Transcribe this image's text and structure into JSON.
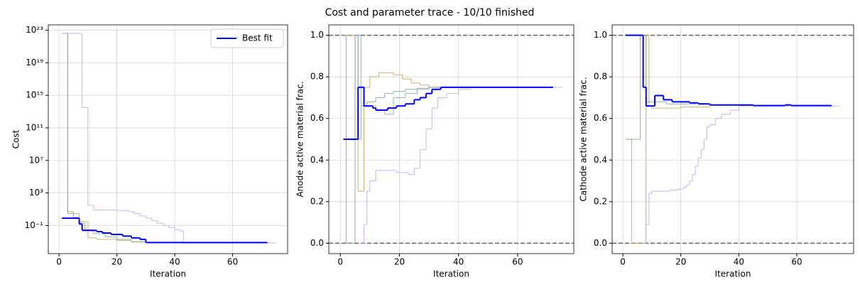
{
  "title": "Cost and parameter trace - 10/10 finished",
  "chart_data": [
    {
      "type": "line",
      "drawstyle": "steps-post",
      "yscale": "log",
      "grid": true,
      "legend": "upper right",
      "xlabel": "Iteration",
      "ylabel": "Cost",
      "xlim": [
        -3.7,
        79
      ],
      "xticks": [
        0,
        20,
        40,
        60
      ],
      "ylim": [
        3.5e-05,
        4.5e+23
      ],
      "yticks": [
        {
          "value": 0.1,
          "label": "10⁻¹"
        },
        {
          "value": 1000,
          "label": "10³"
        },
        {
          "value": 10000000.0,
          "label": "10⁷"
        },
        {
          "value": 100000000000.0,
          "label": "10¹¹"
        },
        {
          "value": 1000000000000000.0,
          "label": "10¹⁵"
        },
        {
          "value": 1e+19,
          "label": "10¹⁹"
        },
        {
          "value": 1e+23,
          "label": "10²³"
        }
      ],
      "series": [
        {
          "color": "#b8a45e",
          "x": [
            1,
            3,
            5,
            7,
            10,
            13,
            20,
            25,
            30,
            45
          ],
          "values": [
            4e+22,
            5,
            3,
            0.3,
            0.003,
            0.002,
            0.0015,
            0.001,
            0.0008,
            0.0008
          ]
        },
        {
          "color": "#7fa88a",
          "x": [
            1,
            3,
            5,
            7,
            9,
            12,
            16,
            20,
            25,
            30
          ],
          "values": [
            4e+22,
            3,
            1,
            0.2,
            0.03,
            0.01,
            0.004,
            0.002,
            0.001,
            0.0008
          ]
        },
        {
          "color": "#c4a6e8",
          "x": [
            1,
            8,
            10,
            12,
            20,
            24,
            26,
            28,
            30,
            32,
            34,
            36,
            38,
            40,
            42,
            43,
            75
          ],
          "values": [
            4e+22,
            30000000000000.0,
            30,
            8,
            7,
            5,
            3,
            1.5,
            0.8,
            0.4,
            0.2,
            0.1,
            0.06,
            0.03,
            0.02,
            0.0007,
            0.0007
          ]
        },
        {
          "name": "Best fit",
          "color": "#0000ff",
          "width": 2,
          "x": [
            1,
            7,
            8,
            13,
            15,
            18,
            22,
            25,
            28,
            30,
            72
          ],
          "values": [
            0.8,
            0.15,
            0.025,
            0.018,
            0.012,
            0.008,
            0.005,
            0.003,
            0.002,
            0.0008,
            0.0008
          ]
        }
      ]
    },
    {
      "type": "line",
      "drawstyle": "steps-post",
      "grid": true,
      "xlabel": "Iteration",
      "ylabel": "Anode active material frac.",
      "xlim": [
        -3.9,
        79
      ],
      "xticks": [
        0,
        20,
        40,
        60
      ],
      "ylim": [
        -0.05,
        1.05
      ],
      "yticks": [
        {
          "value": 0,
          "label": "0.0"
        },
        0.2,
        0.4,
        0.6,
        0.8,
        {
          "value": 1,
          "label": "1.0"
        }
      ],
      "hlines": [
        0,
        1
      ],
      "series": [
        {
          "color": "#b8a45e",
          "x": [
            1,
            6,
            8,
            10,
            13,
            18,
            21,
            24,
            27,
            30,
            52
          ],
          "values": [
            1.0,
            0.25,
            0.75,
            0.8,
            0.82,
            0.81,
            0.79,
            0.77,
            0.76,
            0.75,
            0.75
          ]
        },
        {
          "color": "#7fa88a",
          "x": [
            1,
            2,
            5,
            6,
            7,
            9,
            12,
            15,
            18,
            22,
            26,
            30,
            35,
            40
          ],
          "values": [
            1.0,
            0.0,
            1.0,
            0.5,
            0.66,
            0.68,
            0.7,
            0.72,
            0.73,
            0.74,
            0.745,
            0.75,
            0.75,
            0.75
          ]
        },
        {
          "color": "#8aa7b5",
          "x": [
            1,
            5,
            7,
            9,
            12,
            15,
            18,
            22,
            26,
            30,
            35
          ],
          "values": [
            0.5,
            1.0,
            0.66,
            0.66,
            0.64,
            0.62,
            0.7,
            0.72,
            0.74,
            0.75,
            0.75
          ]
        },
        {
          "color": "#c4a6e8",
          "x": [
            7,
            8,
            9,
            10,
            12,
            19,
            23,
            25,
            27,
            29,
            31,
            33,
            36,
            40,
            44,
            75
          ],
          "values": [
            0.0,
            0.09,
            0.25,
            0.3,
            0.35,
            0.34,
            0.33,
            0.36,
            0.45,
            0.55,
            0.65,
            0.7,
            0.72,
            0.74,
            0.75,
            0.75
          ]
        },
        {
          "name": "Best fit",
          "color": "#0000ff",
          "width": 2,
          "x": [
            1,
            6,
            8,
            11,
            12,
            16,
            19,
            22,
            25,
            27,
            29,
            31,
            34,
            72
          ],
          "values": [
            0.5,
            0.75,
            0.66,
            0.65,
            0.64,
            0.65,
            0.66,
            0.67,
            0.69,
            0.7,
            0.72,
            0.74,
            0.75,
            0.75
          ]
        }
      ]
    },
    {
      "type": "line",
      "drawstyle": "steps-post",
      "grid": true,
      "xlabel": "Iteration",
      "ylabel": "Cathode active material frac.",
      "xlim": [
        -3.7,
        79.6
      ],
      "xticks": [
        0,
        20,
        40,
        60
      ],
      "ylim": [
        -0.05,
        1.05
      ],
      "yticks": [
        {
          "value": 0,
          "label": "0.0"
        },
        0.2,
        0.4,
        0.6,
        0.8,
        {
          "value": 1,
          "label": "1.0"
        }
      ],
      "hlines": [
        0,
        1
      ],
      "series": [
        {
          "color": "#b8a45e",
          "x": [
            1,
            3,
            8,
            9,
            10,
            20,
            30
          ],
          "values": [
            0.5,
            0.0,
            1.0,
            0.66,
            0.65,
            0.655,
            0.66
          ]
        },
        {
          "color": "#7fa88a",
          "x": [
            1,
            6,
            8,
            11,
            15,
            25
          ],
          "values": [
            0.5,
            1.0,
            0.68,
            0.68,
            0.67,
            0.665
          ]
        },
        {
          "color": "#c4a6e8",
          "x": [
            7,
            8,
            9,
            10,
            16,
            19,
            21,
            22,
            23,
            24,
            25,
            26,
            27,
            28,
            29,
            30,
            32,
            34,
            37,
            40,
            75
          ],
          "values": [
            0.0,
            0.09,
            0.24,
            0.25,
            0.255,
            0.26,
            0.27,
            0.28,
            0.3,
            0.33,
            0.37,
            0.41,
            0.45,
            0.5,
            0.56,
            0.57,
            0.6,
            0.62,
            0.64,
            0.66,
            0.66
          ]
        },
        {
          "name": "Best fit",
          "color": "#0000ff",
          "width": 2,
          "x": [
            1,
            7,
            8,
            11,
            14,
            17,
            20,
            23,
            26,
            30,
            36,
            45,
            56,
            58,
            72
          ],
          "values": [
            1.0,
            0.75,
            0.66,
            0.71,
            0.69,
            0.68,
            0.68,
            0.675,
            0.67,
            0.665,
            0.665,
            0.662,
            0.665,
            0.662,
            0.662
          ]
        }
      ]
    }
  ]
}
